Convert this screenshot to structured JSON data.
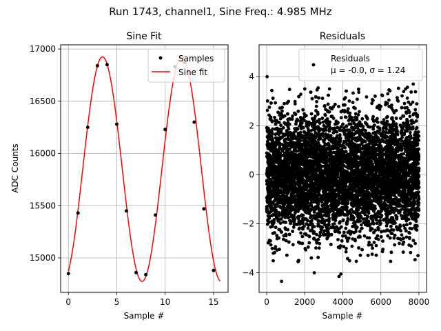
{
  "figure": {
    "suptitle": "Run 1743, channel1, Sine Freq.: 4.985 MHz"
  },
  "chart_data": [
    {
      "type": "line",
      "title": "Sine Fit",
      "xlabel": "Sample #",
      "ylabel": "ADC Counts",
      "xlim": [
        -0.8,
        16.5
      ],
      "ylim": [
        14670,
        17040
      ],
      "xticks": [
        0,
        5,
        10,
        15
      ],
      "yticks": [
        15000,
        15500,
        16000,
        16500,
        17000
      ],
      "grid": true,
      "legend": "top-right",
      "series": [
        {
          "name": "Samples",
          "kind": "scatter",
          "color": "#000000",
          "x": [
            0,
            1,
            2,
            3,
            4,
            5,
            6,
            7,
            8,
            9,
            10,
            11,
            12,
            13,
            14,
            15
          ],
          "y": [
            14850,
            15430,
            16250,
            16840,
            16850,
            16280,
            15450,
            14860,
            14840,
            15410,
            16230,
            16830,
            16870,
            16300,
            15470,
            14880
          ]
        },
        {
          "name": "Sine fit",
          "kind": "line",
          "color": "#ff0000",
          "fit": {
            "offset": 15850,
            "amplitude": 1075,
            "period": 8.18,
            "phase_x": 1.48,
            "x_range": [
              0,
              15.7
            ]
          }
        }
      ]
    },
    {
      "type": "scatter",
      "title": "Residuals",
      "xlabel": "Sample #",
      "ylabel": "",
      "xlim": [
        -400,
        8400
      ],
      "ylim": [
        -4.8,
        5.3
      ],
      "xticks": [
        0,
        2000,
        4000,
        6000,
        8000
      ],
      "yticks": [
        -4,
        -2,
        0,
        2,
        4
      ],
      "grid": true,
      "legend": "top-right",
      "series": [
        {
          "name": "Residuals",
          "legend_stats": "μ = -0.0, σ = 1.24",
          "color": "#000000",
          "n_points": 8000,
          "mean": 0.0,
          "std": 1.24,
          "x_range": [
            0,
            8000
          ],
          "outliers": [
            {
              "x": 20,
              "y": 4.0
            },
            {
              "x": 780,
              "y": -4.35
            },
            {
              "x": 2500,
              "y": -4.0
            },
            {
              "x": 3800,
              "y": -4.15
            },
            {
              "x": 3900,
              "y": -4.05
            },
            {
              "x": 7700,
              "y": 3.7
            },
            {
              "x": 7300,
              "y": 3.5
            },
            {
              "x": 2000,
              "y": 3.5
            },
            {
              "x": 3300,
              "y": 3.5
            },
            {
              "x": 7950,
              "y": -3.3
            }
          ]
        }
      ]
    }
  ]
}
